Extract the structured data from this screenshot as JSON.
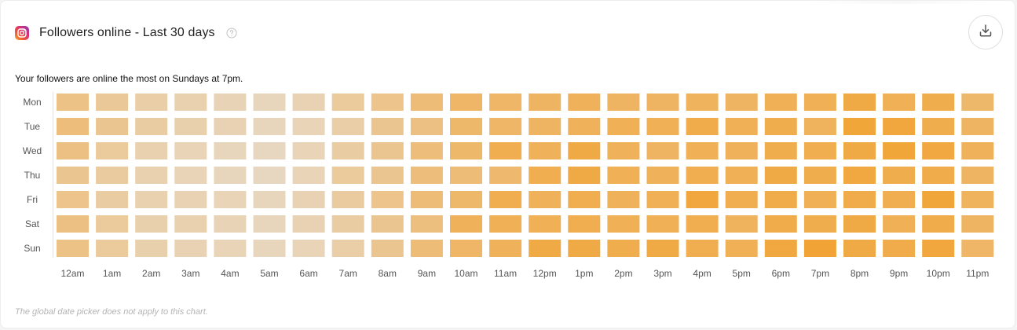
{
  "card": {
    "title": "Followers online - Last 30 days",
    "insight": "Your followers are online the most on Sundays at 7pm.",
    "footnote": "The global date picker does not apply to this chart."
  },
  "icons": {
    "platform": "instagram-icon",
    "help": "help-circle-icon",
    "download": "download-icon"
  },
  "colors": {
    "low": "#e7ddd0",
    "high": "#f2a12d"
  },
  "chart_data": {
    "type": "heatmap",
    "title": "Followers online - Last 30 days",
    "rows": [
      "Mon",
      "Tue",
      "Wed",
      "Thu",
      "Fri",
      "Sat",
      "Sun"
    ],
    "columns": [
      "12am",
      "1am",
      "2am",
      "3am",
      "4am",
      "5am",
      "6am",
      "7am",
      "8am",
      "9am",
      "10am",
      "11am",
      "12pm",
      "1pm",
      "2pm",
      "3pm",
      "4pm",
      "5pm",
      "6pm",
      "7pm",
      "8pm",
      "9pm",
      "10pm",
      "11pm"
    ],
    "scale": [
      0,
      1
    ],
    "values": [
      [
        0.45,
        0.35,
        0.25,
        0.2,
        0.16,
        0.12,
        0.18,
        0.32,
        0.42,
        0.55,
        0.65,
        0.65,
        0.68,
        0.72,
        0.68,
        0.68,
        0.7,
        0.68,
        0.75,
        0.75,
        0.85,
        0.75,
        0.8,
        0.62
      ],
      [
        0.52,
        0.4,
        0.28,
        0.22,
        0.18,
        0.12,
        0.15,
        0.25,
        0.4,
        0.48,
        0.62,
        0.65,
        0.68,
        0.72,
        0.75,
        0.75,
        0.82,
        0.75,
        0.8,
        0.7,
        0.92,
        0.9,
        0.8,
        0.68
      ],
      [
        0.48,
        0.32,
        0.2,
        0.15,
        0.12,
        0.1,
        0.15,
        0.28,
        0.4,
        0.52,
        0.62,
        0.78,
        0.72,
        0.85,
        0.72,
        0.68,
        0.75,
        0.72,
        0.8,
        0.78,
        0.85,
        0.92,
        0.88,
        0.72
      ],
      [
        0.4,
        0.3,
        0.2,
        0.15,
        0.12,
        0.1,
        0.15,
        0.32,
        0.4,
        0.52,
        0.55,
        0.6,
        0.78,
        0.85,
        0.75,
        0.72,
        0.78,
        0.75,
        0.85,
        0.8,
        0.88,
        0.8,
        0.82,
        0.68
      ],
      [
        0.42,
        0.28,
        0.2,
        0.18,
        0.15,
        0.12,
        0.18,
        0.3,
        0.42,
        0.55,
        0.62,
        0.78,
        0.72,
        0.78,
        0.72,
        0.75,
        0.9,
        0.78,
        0.82,
        0.75,
        0.82,
        0.78,
        0.92,
        0.7
      ],
      [
        0.48,
        0.32,
        0.22,
        0.2,
        0.16,
        0.12,
        0.18,
        0.28,
        0.4,
        0.5,
        0.72,
        0.75,
        0.75,
        0.78,
        0.75,
        0.75,
        0.78,
        0.7,
        0.82,
        0.8,
        0.85,
        0.75,
        0.82,
        0.68
      ],
      [
        0.45,
        0.32,
        0.22,
        0.18,
        0.15,
        0.12,
        0.15,
        0.25,
        0.4,
        0.55,
        0.65,
        0.72,
        0.85,
        0.85,
        0.8,
        0.85,
        0.78,
        0.75,
        0.88,
        0.95,
        0.85,
        0.82,
        0.9,
        0.65
      ]
    ],
    "peak": {
      "row": "Sun",
      "column": "7pm"
    },
    "legend": "none"
  }
}
